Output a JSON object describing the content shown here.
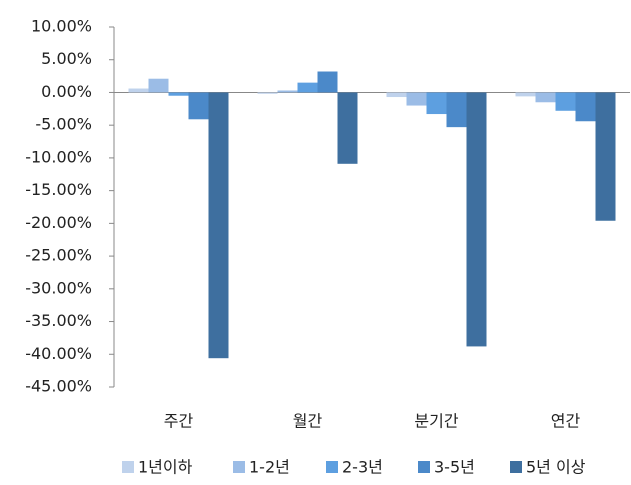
{
  "chart_data": {
    "type": "bar",
    "categories": [
      "주간",
      "월간",
      "분기간",
      "연간"
    ],
    "series": [
      {
        "name": "1년이하",
        "color": "#bfd2ec",
        "values": [
          0.6,
          -0.2,
          -0.7,
          -0.6
        ]
      },
      {
        "name": "1-2년",
        "color": "#9bbce6",
        "values": [
          2.1,
          0.3,
          -2.0,
          -1.5
        ]
      },
      {
        "name": "2-3년",
        "color": "#5d9fe0",
        "values": [
          -0.5,
          1.5,
          -3.3,
          -2.8
        ]
      },
      {
        "name": "3-5년",
        "color": "#4b89c9",
        "values": [
          -4.1,
          3.2,
          -5.3,
          -4.4
        ]
      },
      {
        "name": "5년 이상",
        "color": "#3e6f9f",
        "values": [
          -40.6,
          -10.9,
          -38.8,
          -19.6
        ]
      }
    ],
    "ylim": [
      -45,
      10
    ],
    "yticks": [
      {
        "value": 10,
        "label": "10.00%"
      },
      {
        "value": 5,
        "label": "5.00%"
      },
      {
        "value": 0,
        "label": "0.00%"
      },
      {
        "value": -5,
        "label": "-5.00%"
      },
      {
        "value": -10,
        "label": "-10.00%"
      },
      {
        "value": -15,
        "label": "-15.00%"
      },
      {
        "value": -20,
        "label": "-20.00%"
      },
      {
        "value": -25,
        "label": "-25.00%"
      },
      {
        "value": -30,
        "label": "-30.00%"
      },
      {
        "value": -35,
        "label": "-35.00%"
      },
      {
        "value": -40,
        "label": "-40.00%"
      },
      {
        "value": -45,
        "label": "-45.00%"
      }
    ],
    "legend": "bottom"
  }
}
